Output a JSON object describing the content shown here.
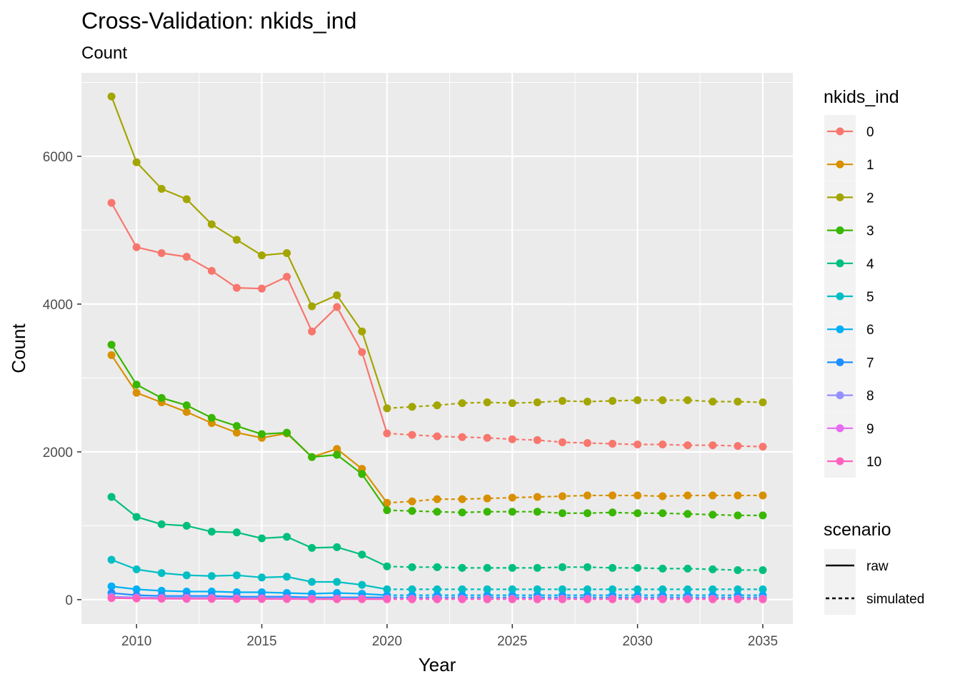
{
  "chart_data": {
    "type": "line",
    "title": "Cross-Validation: nkids_ind",
    "subtitle": "Count",
    "xlabel": "Year",
    "ylabel": "Count",
    "xlim": [
      2007.8,
      2036.2
    ],
    "ylim": [
      -330,
      7130
    ],
    "x_ticks": [
      2010,
      2015,
      2020,
      2025,
      2030,
      2035
    ],
    "y_ticks": [
      0,
      2000,
      4000,
      6000
    ],
    "grid": true,
    "legend_placement": "right",
    "colors": {
      "panel_bg": "#EBEBEB",
      "grid": "#FFFFFF"
    },
    "legend_color": {
      "title": "nkids_ind",
      "entries": [
        "0",
        "1",
        "2",
        "3",
        "4",
        "5",
        "6",
        "7",
        "8",
        "9",
        "10"
      ]
    },
    "legend_linetype": {
      "title": "scenario",
      "entries": [
        {
          "label": "raw",
          "linetype": "solid"
        },
        {
          "label": "simulated",
          "linetype": "dashed"
        }
      ]
    },
    "raw_years": [
      2009,
      2010,
      2011,
      2012,
      2013,
      2014,
      2015,
      2016,
      2017,
      2018,
      2019,
      2020
    ],
    "simulated_years": [
      2020,
      2021,
      2022,
      2023,
      2024,
      2025,
      2026,
      2027,
      2028,
      2029,
      2030,
      2031,
      2032,
      2033,
      2034,
      2035
    ],
    "series": [
      {
        "name": "0",
        "color": "#F8766D",
        "raw": [
          5370,
          4770,
          4690,
          4640,
          4450,
          4220,
          4210,
          4370,
          3630,
          3960,
          3350,
          2250
        ],
        "simulated": [
          2250,
          2230,
          2210,
          2200,
          2190,
          2170,
          2160,
          2130,
          2120,
          2110,
          2100,
          2100,
          2090,
          2090,
          2080,
          2070
        ]
      },
      {
        "name": "1",
        "color": "#D89000",
        "raw": [
          3310,
          2800,
          2670,
          2540,
          2390,
          2260,
          2190,
          2250,
          1930,
          2040,
          1770,
          1310
        ],
        "simulated": [
          1310,
          1330,
          1360,
          1360,
          1370,
          1380,
          1390,
          1400,
          1410,
          1410,
          1410,
          1400,
          1410,
          1410,
          1410,
          1410
        ]
      },
      {
        "name": "2",
        "color": "#A3A500",
        "raw": [
          6810,
          5920,
          5560,
          5420,
          5080,
          4870,
          4660,
          4690,
          3970,
          4120,
          3630,
          2590
        ],
        "simulated": [
          2590,
          2610,
          2630,
          2660,
          2670,
          2660,
          2670,
          2690,
          2680,
          2690,
          2700,
          2700,
          2700,
          2680,
          2680,
          2670
        ]
      },
      {
        "name": "3",
        "color": "#39B600",
        "raw": [
          3450,
          2910,
          2730,
          2630,
          2460,
          2350,
          2240,
          2260,
          1930,
          1960,
          1700,
          1210
        ],
        "simulated": [
          1210,
          1200,
          1190,
          1180,
          1190,
          1190,
          1190,
          1170,
          1170,
          1180,
          1170,
          1170,
          1160,
          1150,
          1140,
          1140
        ]
      },
      {
        "name": "4",
        "color": "#00BF7D",
        "raw": [
          1390,
          1120,
          1020,
          1000,
          920,
          910,
          830,
          850,
          700,
          710,
          610,
          450
        ],
        "simulated": [
          450,
          440,
          440,
          430,
          430,
          430,
          430,
          440,
          440,
          430,
          430,
          420,
          420,
          410,
          400,
          400
        ]
      },
      {
        "name": "5",
        "color": "#00BFC4",
        "raw": [
          540,
          410,
          360,
          330,
          320,
          330,
          300,
          310,
          240,
          240,
          200,
          140
        ],
        "simulated": [
          140,
          140,
          140,
          140,
          140,
          140,
          140,
          140,
          140,
          140,
          140,
          140,
          140,
          140,
          140,
          140
        ]
      },
      {
        "name": "6",
        "color": "#00B0F6",
        "raw": [
          180,
          140,
          120,
          110,
          110,
          100,
          100,
          90,
          80,
          90,
          80,
          60
        ],
        "simulated": [
          60,
          60,
          60,
          60,
          60,
          60,
          60,
          60,
          60,
          60,
          60,
          60,
          60,
          60,
          60,
          60
        ]
      },
      {
        "name": "7",
        "color": "#1E8FFF",
        "raw": [
          90,
          60,
          50,
          50,
          50,
          40,
          40,
          40,
          30,
          30,
          30,
          30
        ],
        "simulated": [
          30,
          30,
          30,
          30,
          30,
          30,
          30,
          30,
          30,
          30,
          30,
          30,
          30,
          30,
          30,
          30
        ]
      },
      {
        "name": "8",
        "color": "#9590FF",
        "raw": [
          40,
          30,
          25,
          25,
          25,
          20,
          20,
          20,
          15,
          15,
          15,
          15
        ],
        "simulated": [
          15,
          15,
          15,
          15,
          15,
          15,
          15,
          15,
          15,
          15,
          15,
          15,
          15,
          15,
          15,
          15
        ]
      },
      {
        "name": "9",
        "color": "#E76BF3",
        "raw": [
          25,
          20,
          15,
          15,
          15,
          12,
          12,
          12,
          10,
          10,
          10,
          8
        ],
        "simulated": [
          8,
          8,
          8,
          8,
          8,
          8,
          8,
          8,
          8,
          8,
          8,
          8,
          8,
          8,
          8,
          8
        ]
      },
      {
        "name": "10",
        "color": "#FF62BC",
        "raw": [
          20,
          15,
          12,
          10,
          10,
          8,
          8,
          8,
          6,
          6,
          6,
          5
        ],
        "simulated": [
          5,
          5,
          5,
          5,
          5,
          5,
          5,
          5,
          5,
          5,
          5,
          5,
          5,
          5,
          5,
          5
        ]
      }
    ]
  }
}
